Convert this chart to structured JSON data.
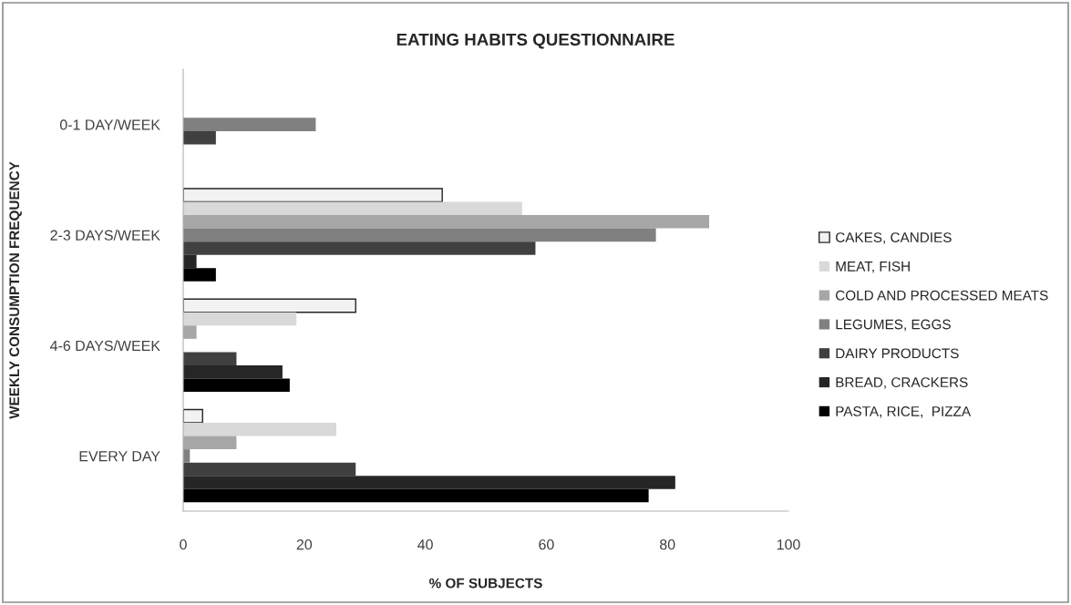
{
  "chart_data": {
    "type": "bar",
    "orientation": "horizontal",
    "title": "EATING HABITS QUESTIONNAIRE",
    "xlabel": "% OF SUBJECTS",
    "ylabel": "WEEKLY CONSUMPTION FREQUENCY",
    "categories": [
      "0-1 DAY/WEEK",
      "2-3 DAYS/WEEK",
      "4-6 DAYS/WEEK",
      "EVERY DAY"
    ],
    "series": [
      {
        "name": "CAKES, CANDIES",
        "color": "#f2f2f2",
        "values": [
          null,
          42.8,
          28.5,
          3.2
        ]
      },
      {
        "name": "MEAT, FISH",
        "color": "#d9d9d9",
        "values": [
          null,
          56.0,
          18.7,
          25.3
        ]
      },
      {
        "name": "COLD AND PROCESSED MEATS",
        "color": "#a6a6a6",
        "values": [
          null,
          86.9,
          2.2,
          8.8
        ]
      },
      {
        "name": "LEGUMES, EGGS",
        "color": "#808080",
        "values": [
          21.9,
          78.1,
          null,
          1.1
        ]
      },
      {
        "name": "DAIRY PRODUCTS",
        "color": "#404040",
        "values": [
          5.4,
          58.2,
          8.8,
          28.5
        ]
      },
      {
        "name": "BREAD, CRACKERS",
        "color": "#262626",
        "values": [
          null,
          2.2,
          16.4,
          81.3
        ]
      },
      {
        "name": "PASTA, RICE,  PIZZA",
        "color": "#000000",
        "values": [
          null,
          5.4,
          17.6,
          76.9
        ]
      }
    ],
    "xlim": [
      0,
      100
    ],
    "xticks": [
      0,
      20,
      40,
      60,
      80,
      100
    ],
    "grid": false,
    "legend": "right"
  }
}
